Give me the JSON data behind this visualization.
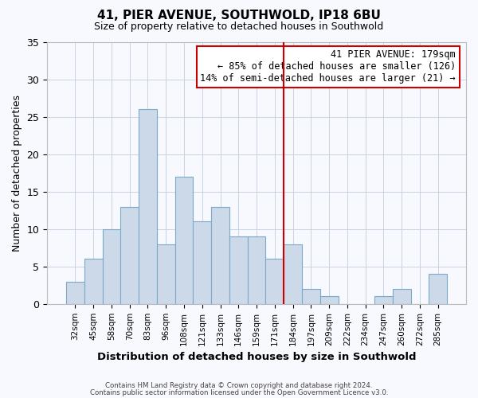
{
  "title": "41, PIER AVENUE, SOUTHWOLD, IP18 6BU",
  "subtitle": "Size of property relative to detached houses in Southwold",
  "xlabel": "Distribution of detached houses by size in Southwold",
  "ylabel": "Number of detached properties",
  "bar_labels": [
    "32sqm",
    "45sqm",
    "58sqm",
    "70sqm",
    "83sqm",
    "96sqm",
    "108sqm",
    "121sqm",
    "133sqm",
    "146sqm",
    "159sqm",
    "171sqm",
    "184sqm",
    "197sqm",
    "209sqm",
    "222sqm",
    "234sqm",
    "247sqm",
    "260sqm",
    "272sqm",
    "285sqm"
  ],
  "bar_values": [
    3,
    6,
    10,
    13,
    26,
    8,
    17,
    11,
    13,
    9,
    9,
    6,
    8,
    2,
    1,
    0,
    0,
    1,
    2,
    0,
    4
  ],
  "bar_color": "#ccd9e8",
  "bar_edge_color": "#7aaac8",
  "highlight_bar_index": 12,
  "highlight_line_color": "#cc0000",
  "ylim": [
    0,
    35
  ],
  "yticks": [
    0,
    5,
    10,
    15,
    20,
    25,
    30,
    35
  ],
  "annotation_title": "41 PIER AVENUE: 179sqm",
  "annotation_line1": "← 85% of detached houses are smaller (126)",
  "annotation_line2": "14% of semi-detached houses are larger (21) →",
  "footer_line1": "Contains HM Land Registry data © Crown copyright and database right 2024.",
  "footer_line2": "Contains public sector information licensed under the Open Government Licence v3.0.",
  "background_color": "#f8f8ff",
  "grid_color": "#c8d4e4"
}
